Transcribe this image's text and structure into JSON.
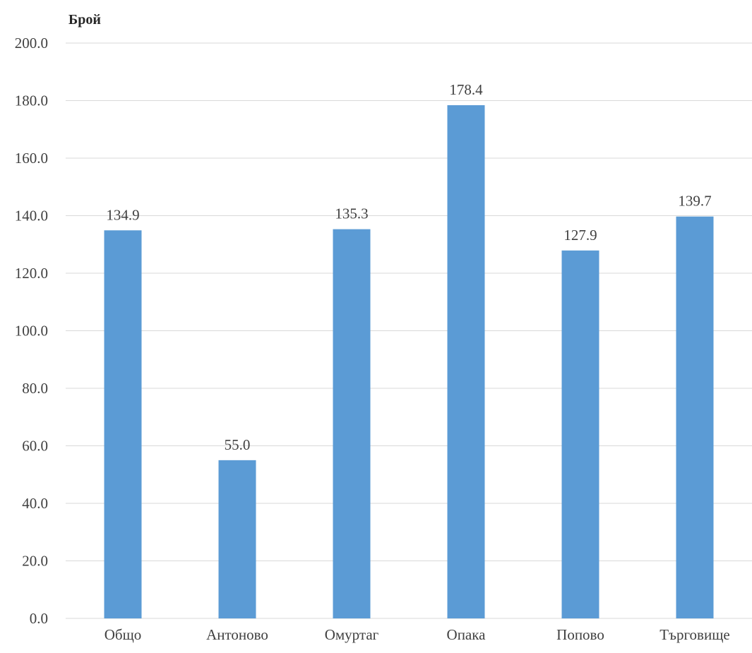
{
  "chart_data": {
    "type": "bar",
    "title": "",
    "xlabel": "",
    "ylabel": "Брой",
    "categories": [
      "Общо",
      "Антоново",
      "Омуртаг",
      "Опака",
      "Попово",
      "Търговище"
    ],
    "values": [
      134.9,
      55.0,
      135.3,
      178.4,
      127.9,
      139.7
    ],
    "data_labels": [
      "134.9",
      "55.0",
      "135.3",
      "178.4",
      "127.9",
      "139.7"
    ],
    "ylim": [
      0,
      200
    ],
    "y_ticks": [
      "0.0",
      "20.0",
      "40.0",
      "60.0",
      "80.0",
      "100.0",
      "120.0",
      "140.0",
      "160.0",
      "180.0",
      "200.0"
    ],
    "grid": true,
    "legend": "none",
    "bar_color": "#5b9bd5",
    "grid_color": "#d9d9d9"
  }
}
